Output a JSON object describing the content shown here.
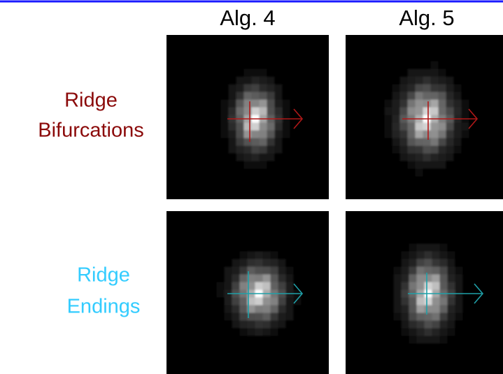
{
  "columns": [
    "Alg. 4",
    "Alg. 5"
  ],
  "rows": [
    {
      "label_lines": [
        "Ridge",
        "Bifurcations"
      ]
    },
    {
      "label_lines": [
        "Ridge",
        "Endings"
      ]
    }
  ]
}
